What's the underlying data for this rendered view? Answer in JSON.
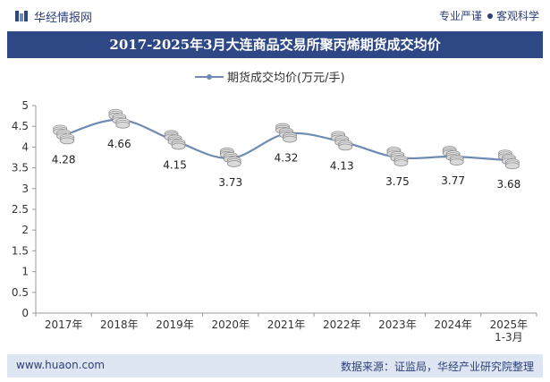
{
  "header": {
    "brand": "华经情报网",
    "tag_professional": "专业严谨",
    "tag_objective": "客观科学"
  },
  "title": "2017-2025年3月大连商品交易所聚丙烯期货成交均价",
  "footer": {
    "website": "www.huaon.com",
    "source": "数据来源：证监局，华经产业研究院整理"
  },
  "colors": {
    "title_bg": "#2e4885",
    "line": "#6e8bb3",
    "footer_bg": "#dfe6f3"
  },
  "chart_data": {
    "type": "line",
    "title": "2017-2025年3月大连商品交易所聚丙烯期货成交均价",
    "legend": "期货成交均价(万元/手)",
    "legend_position": "top-center",
    "categories": [
      "2017年",
      "2018年",
      "2019年",
      "2020年",
      "2021年",
      "2022年",
      "2023年",
      "2024年",
      "2025年 1-3月"
    ],
    "category_lines": [
      [
        "2017年"
      ],
      [
        "2018年"
      ],
      [
        "2019年"
      ],
      [
        "2020年"
      ],
      [
        "2021年"
      ],
      [
        "2022年"
      ],
      [
        "2023年"
      ],
      [
        "2024年"
      ],
      [
        "2025年",
        "1-3月"
      ]
    ],
    "series": [
      {
        "name": "期货成交均价(万元/手)",
        "values": [
          4.28,
          4.66,
          4.15,
          3.73,
          4.32,
          4.13,
          3.75,
          3.77,
          3.68
        ]
      }
    ],
    "data_labels": [
      "4.28",
      "4.66",
      "4.15",
      "3.73",
      "4.32",
      "4.13",
      "3.75",
      "3.77",
      "3.68"
    ],
    "ylim": [
      0,
      5
    ],
    "yticks": [
      "0",
      "0.5",
      "1",
      "1.5",
      "2",
      "2.5",
      "3",
      "3.5",
      "4",
      "4.5",
      "5"
    ],
    "ytick_values": [
      0,
      0.5,
      1,
      1.5,
      2,
      2.5,
      3,
      3.5,
      4,
      4.5,
      5
    ],
    "grid": false,
    "smooth": true
  }
}
